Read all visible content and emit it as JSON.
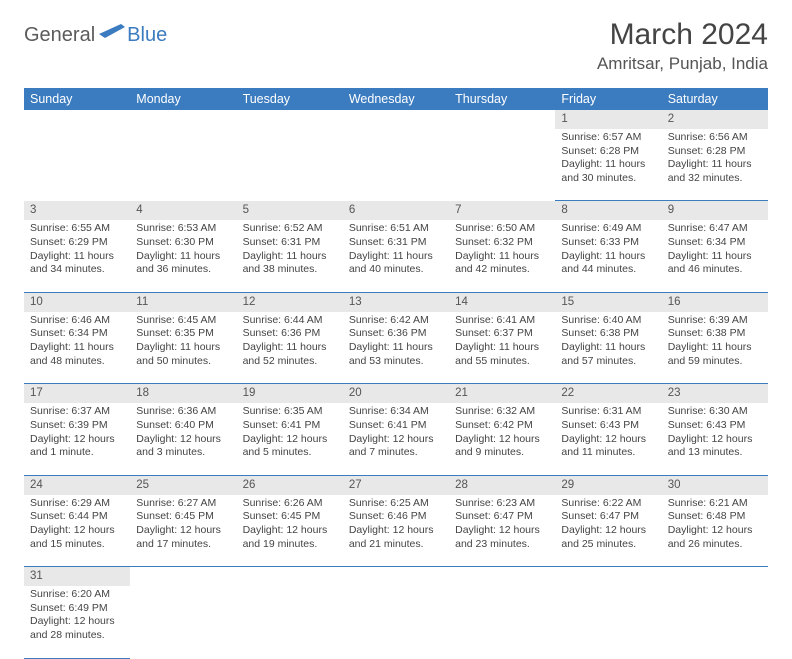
{
  "logo": {
    "general": "General",
    "blue": "Blue"
  },
  "title": "March 2024",
  "location": "Amritsar, Punjab, India",
  "colors": {
    "header_bg": "#3b7bbf",
    "header_text": "#ffffff",
    "daynum_bg": "#e8e8e8",
    "row_divider": "#3b7bbf",
    "body_text": "#444444"
  },
  "weekdays": [
    "Sunday",
    "Monday",
    "Tuesday",
    "Wednesday",
    "Thursday",
    "Friday",
    "Saturday"
  ],
  "weeks": [
    {
      "nums": [
        "",
        "",
        "",
        "",
        "",
        "1",
        "2"
      ],
      "cells": [
        null,
        null,
        null,
        null,
        null,
        {
          "sunrise": "Sunrise: 6:57 AM",
          "sunset": "Sunset: 6:28 PM",
          "day1": "Daylight: 11 hours",
          "day2": "and 30 minutes."
        },
        {
          "sunrise": "Sunrise: 6:56 AM",
          "sunset": "Sunset: 6:28 PM",
          "day1": "Daylight: 11 hours",
          "day2": "and 32 minutes."
        }
      ]
    },
    {
      "nums": [
        "3",
        "4",
        "5",
        "6",
        "7",
        "8",
        "9"
      ],
      "cells": [
        {
          "sunrise": "Sunrise: 6:55 AM",
          "sunset": "Sunset: 6:29 PM",
          "day1": "Daylight: 11 hours",
          "day2": "and 34 minutes."
        },
        {
          "sunrise": "Sunrise: 6:53 AM",
          "sunset": "Sunset: 6:30 PM",
          "day1": "Daylight: 11 hours",
          "day2": "and 36 minutes."
        },
        {
          "sunrise": "Sunrise: 6:52 AM",
          "sunset": "Sunset: 6:31 PM",
          "day1": "Daylight: 11 hours",
          "day2": "and 38 minutes."
        },
        {
          "sunrise": "Sunrise: 6:51 AM",
          "sunset": "Sunset: 6:31 PM",
          "day1": "Daylight: 11 hours",
          "day2": "and 40 minutes."
        },
        {
          "sunrise": "Sunrise: 6:50 AM",
          "sunset": "Sunset: 6:32 PM",
          "day1": "Daylight: 11 hours",
          "day2": "and 42 minutes."
        },
        {
          "sunrise": "Sunrise: 6:49 AM",
          "sunset": "Sunset: 6:33 PM",
          "day1": "Daylight: 11 hours",
          "day2": "and 44 minutes."
        },
        {
          "sunrise": "Sunrise: 6:47 AM",
          "sunset": "Sunset: 6:34 PM",
          "day1": "Daylight: 11 hours",
          "day2": "and 46 minutes."
        }
      ]
    },
    {
      "nums": [
        "10",
        "11",
        "12",
        "13",
        "14",
        "15",
        "16"
      ],
      "cells": [
        {
          "sunrise": "Sunrise: 6:46 AM",
          "sunset": "Sunset: 6:34 PM",
          "day1": "Daylight: 11 hours",
          "day2": "and 48 minutes."
        },
        {
          "sunrise": "Sunrise: 6:45 AM",
          "sunset": "Sunset: 6:35 PM",
          "day1": "Daylight: 11 hours",
          "day2": "and 50 minutes."
        },
        {
          "sunrise": "Sunrise: 6:44 AM",
          "sunset": "Sunset: 6:36 PM",
          "day1": "Daylight: 11 hours",
          "day2": "and 52 minutes."
        },
        {
          "sunrise": "Sunrise: 6:42 AM",
          "sunset": "Sunset: 6:36 PM",
          "day1": "Daylight: 11 hours",
          "day2": "and 53 minutes."
        },
        {
          "sunrise": "Sunrise: 6:41 AM",
          "sunset": "Sunset: 6:37 PM",
          "day1": "Daylight: 11 hours",
          "day2": "and 55 minutes."
        },
        {
          "sunrise": "Sunrise: 6:40 AM",
          "sunset": "Sunset: 6:38 PM",
          "day1": "Daylight: 11 hours",
          "day2": "and 57 minutes."
        },
        {
          "sunrise": "Sunrise: 6:39 AM",
          "sunset": "Sunset: 6:38 PM",
          "day1": "Daylight: 11 hours",
          "day2": "and 59 minutes."
        }
      ]
    },
    {
      "nums": [
        "17",
        "18",
        "19",
        "20",
        "21",
        "22",
        "23"
      ],
      "cells": [
        {
          "sunrise": "Sunrise: 6:37 AM",
          "sunset": "Sunset: 6:39 PM",
          "day1": "Daylight: 12 hours",
          "day2": "and 1 minute."
        },
        {
          "sunrise": "Sunrise: 6:36 AM",
          "sunset": "Sunset: 6:40 PM",
          "day1": "Daylight: 12 hours",
          "day2": "and 3 minutes."
        },
        {
          "sunrise": "Sunrise: 6:35 AM",
          "sunset": "Sunset: 6:41 PM",
          "day1": "Daylight: 12 hours",
          "day2": "and 5 minutes."
        },
        {
          "sunrise": "Sunrise: 6:34 AM",
          "sunset": "Sunset: 6:41 PM",
          "day1": "Daylight: 12 hours",
          "day2": "and 7 minutes."
        },
        {
          "sunrise": "Sunrise: 6:32 AM",
          "sunset": "Sunset: 6:42 PM",
          "day1": "Daylight: 12 hours",
          "day2": "and 9 minutes."
        },
        {
          "sunrise": "Sunrise: 6:31 AM",
          "sunset": "Sunset: 6:43 PM",
          "day1": "Daylight: 12 hours",
          "day2": "and 11 minutes."
        },
        {
          "sunrise": "Sunrise: 6:30 AM",
          "sunset": "Sunset: 6:43 PM",
          "day1": "Daylight: 12 hours",
          "day2": "and 13 minutes."
        }
      ]
    },
    {
      "nums": [
        "24",
        "25",
        "26",
        "27",
        "28",
        "29",
        "30"
      ],
      "cells": [
        {
          "sunrise": "Sunrise: 6:29 AM",
          "sunset": "Sunset: 6:44 PM",
          "day1": "Daylight: 12 hours",
          "day2": "and 15 minutes."
        },
        {
          "sunrise": "Sunrise: 6:27 AM",
          "sunset": "Sunset: 6:45 PM",
          "day1": "Daylight: 12 hours",
          "day2": "and 17 minutes."
        },
        {
          "sunrise": "Sunrise: 6:26 AM",
          "sunset": "Sunset: 6:45 PM",
          "day1": "Daylight: 12 hours",
          "day2": "and 19 minutes."
        },
        {
          "sunrise": "Sunrise: 6:25 AM",
          "sunset": "Sunset: 6:46 PM",
          "day1": "Daylight: 12 hours",
          "day2": "and 21 minutes."
        },
        {
          "sunrise": "Sunrise: 6:23 AM",
          "sunset": "Sunset: 6:47 PM",
          "day1": "Daylight: 12 hours",
          "day2": "and 23 minutes."
        },
        {
          "sunrise": "Sunrise: 6:22 AM",
          "sunset": "Sunset: 6:47 PM",
          "day1": "Daylight: 12 hours",
          "day2": "and 25 minutes."
        },
        {
          "sunrise": "Sunrise: 6:21 AM",
          "sunset": "Sunset: 6:48 PM",
          "day1": "Daylight: 12 hours",
          "day2": "and 26 minutes."
        }
      ]
    },
    {
      "nums": [
        "31",
        "",
        "",
        "",
        "",
        "",
        ""
      ],
      "cells": [
        {
          "sunrise": "Sunrise: 6:20 AM",
          "sunset": "Sunset: 6:49 PM",
          "day1": "Daylight: 12 hours",
          "day2": "and 28 minutes."
        },
        null,
        null,
        null,
        null,
        null,
        null
      ]
    }
  ]
}
